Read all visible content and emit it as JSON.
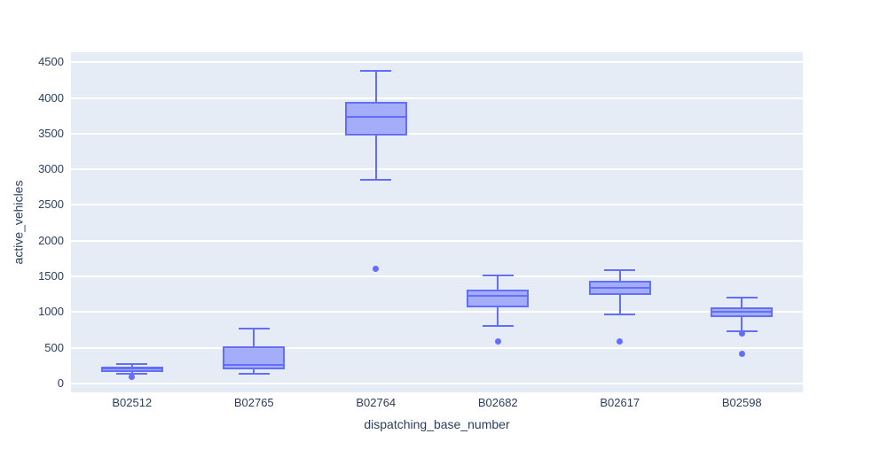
{
  "chart_data": {
    "type": "box",
    "title": "",
    "xlabel": "dispatching_base_number",
    "ylabel": "active_vehicles",
    "categories": [
      "B02512",
      "B02765",
      "B02764",
      "B02682",
      "B02617",
      "B02598"
    ],
    "yticks": [
      0,
      500,
      1000,
      1500,
      2000,
      2500,
      3000,
      3500,
      4000,
      4500
    ],
    "ylim": [
      -125,
      4640
    ],
    "grid": "horizontal-only",
    "legend": "none",
    "series": [
      {
        "name": "B02512",
        "min": 130,
        "q1": 155,
        "median": 205,
        "q3": 235,
        "max": 270,
        "outliers": [
          95
        ]
      },
      {
        "name": "B02765",
        "min": 130,
        "q1": 200,
        "median": 265,
        "q3": 520,
        "max": 765,
        "outliers": []
      },
      {
        "name": "B02764",
        "min": 2855,
        "q1": 3475,
        "median": 3730,
        "q3": 3945,
        "max": 4385,
        "outliers": [
          1610
        ]
      },
      {
        "name": "B02682",
        "min": 800,
        "q1": 1070,
        "median": 1225,
        "q3": 1320,
        "max": 1515,
        "outliers": [
          585
        ]
      },
      {
        "name": "B02617",
        "min": 970,
        "q1": 1240,
        "median": 1340,
        "q3": 1440,
        "max": 1590,
        "outliers": [
          585
        ]
      },
      {
        "name": "B02598",
        "min": 730,
        "q1": 930,
        "median": 1000,
        "q3": 1065,
        "max": 1200,
        "outliers": [
          695,
          410
        ]
      }
    ],
    "colors": {
      "box_line": "#636efa",
      "box_fill": "rgba(99,110,250,0.5)",
      "outlier": "#636efa",
      "plot_bg": "#e5ecf6",
      "grid": "#ffffff",
      "text": "#2a3f5f",
      "paper_bg": "#ffffff"
    }
  }
}
